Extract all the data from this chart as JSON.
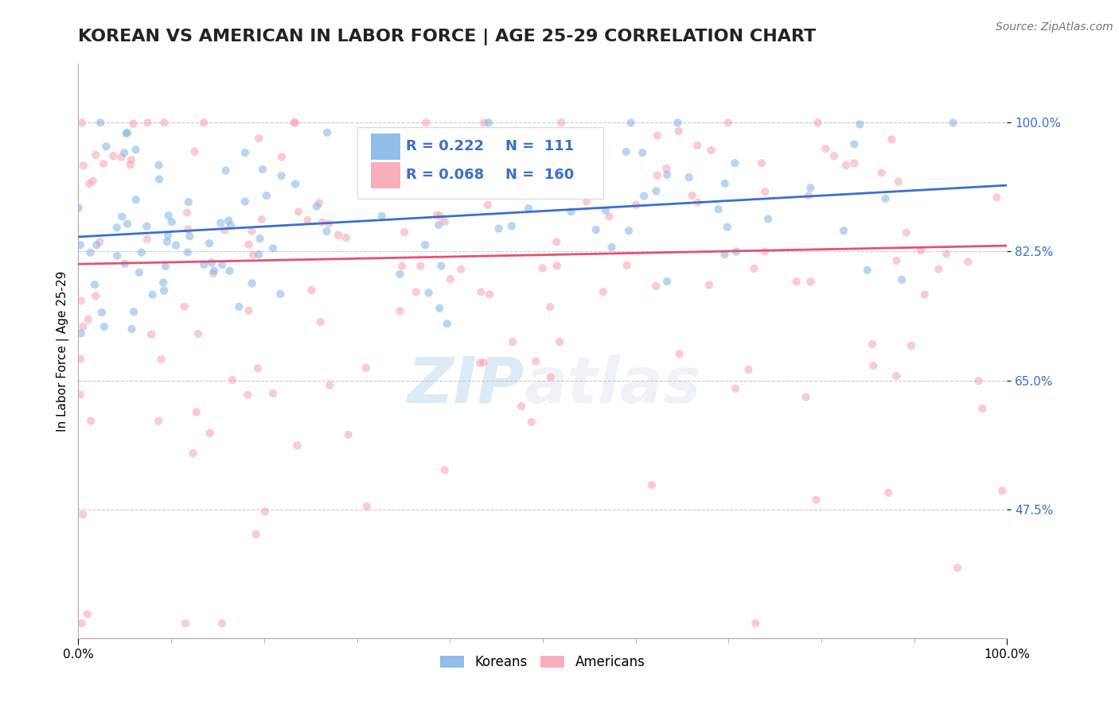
{
  "title": "KOREAN VS AMERICAN IN LABOR FORCE | AGE 25-29 CORRELATION CHART",
  "source_text": "Source: ZipAtlas.com",
  "ylabel": "In Labor Force | Age 25-29",
  "xlim": [
    0.0,
    1.0
  ],
  "ylim": [
    0.3,
    1.08
  ],
  "yticks": [
    0.475,
    0.65,
    0.825,
    1.0
  ],
  "ytick_labels": [
    "47.5%",
    "65.0%",
    "82.5%",
    "100.0%"
  ],
  "xtick_labels": [
    "0.0%",
    "100.0%"
  ],
  "xticks": [
    0.0,
    1.0
  ],
  "korean_R": 0.222,
  "korean_N": 111,
  "american_R": 0.068,
  "american_N": 160,
  "korean_color": "#7EB3E8",
  "american_color": "#F9A0B0",
  "korean_line_color": "#3B6FCC",
  "american_line_color": "#E85070",
  "legend_label_korean": "Koreans",
  "legend_label_american": "Americans",
  "watermark_ZIP": "ZIP",
  "watermark_atlas": "atlas",
  "title_fontsize": 16,
  "axis_label_fontsize": 11,
  "tick_fontsize": 11,
  "source_fontsize": 10,
  "scatter_alpha": 0.55,
  "scatter_size": 55,
  "seed": 12,
  "korean_trend_x": [
    0.0,
    1.0
  ],
  "korean_trend_y": [
    0.845,
    0.915
  ],
  "american_trend_x": [
    0.0,
    1.0
  ],
  "american_trend_y": [
    0.808,
    0.833
  ]
}
